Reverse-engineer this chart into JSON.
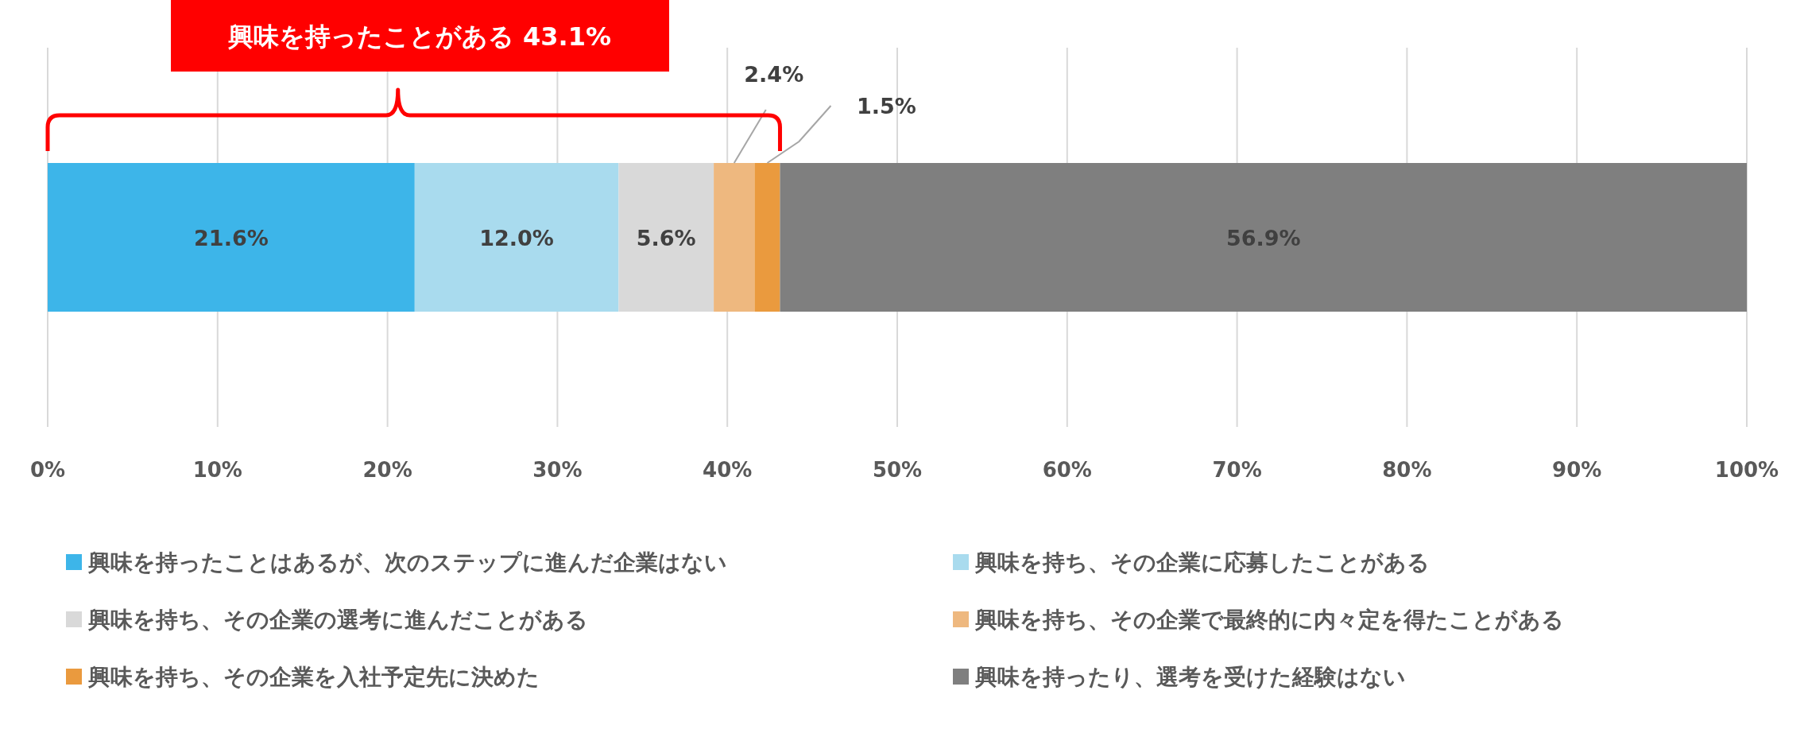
{
  "chart_data": {
    "type": "bar",
    "orientation": "horizontal",
    "stacked": true,
    "categories": [
      null
    ],
    "series": [
      {
        "name": "興味を持ったことはあるが、次のステップに進んだ企業はない",
        "color": "#3db5e9",
        "values": [
          21.6
        ],
        "value_labels": [
          "21.6%"
        ]
      },
      {
        "name": "興味を持ち、その企業に応募したことがある",
        "color": "#a9dbee",
        "values": [
          12.0
        ],
        "value_labels": [
          "12.0%"
        ]
      },
      {
        "name": "興味を持ち、その企業の選考に進んだことがある",
        "color": "#d9d9d9",
        "values": [
          5.6
        ],
        "value_labels": [
          "5.6%"
        ]
      },
      {
        "name": "興味を持ち、その企業で最終的に内々定を得たことがある",
        "color": "#eeb87f",
        "values": [
          2.4
        ],
        "value_labels": [
          "2.4%"
        ]
      },
      {
        "name": "興味を持ち、その企業を入社予定先に決めた",
        "color": "#ea9a3e",
        "values": [
          1.5
        ],
        "value_labels": [
          "1.5%"
        ]
      },
      {
        "name": "興味を持ったり、選考を受けた経験はない",
        "color": "#7f7f7f",
        "values": [
          56.9
        ],
        "value_labels": [
          "56.9%"
        ]
      }
    ],
    "xlim": [
      0,
      100
    ],
    "xticks": [
      {
        "value": 0,
        "label": "0%"
      },
      {
        "value": 10,
        "label": "10%"
      },
      {
        "value": 20,
        "label": "20%"
      },
      {
        "value": 30,
        "label": "30%"
      },
      {
        "value": 40,
        "label": "40%"
      },
      {
        "value": 50,
        "label": "50%"
      },
      {
        "value": 60,
        "label": "60%"
      },
      {
        "value": 70,
        "label": "70%"
      },
      {
        "value": 80,
        "label": "80%"
      },
      {
        "value": 90,
        "label": "90%"
      },
      {
        "value": 100,
        "label": "100%"
      }
    ],
    "grid": "x",
    "legend": "bottom",
    "annotations": [
      "興味を持ったことがある 43.1%"
    ]
  }
}
